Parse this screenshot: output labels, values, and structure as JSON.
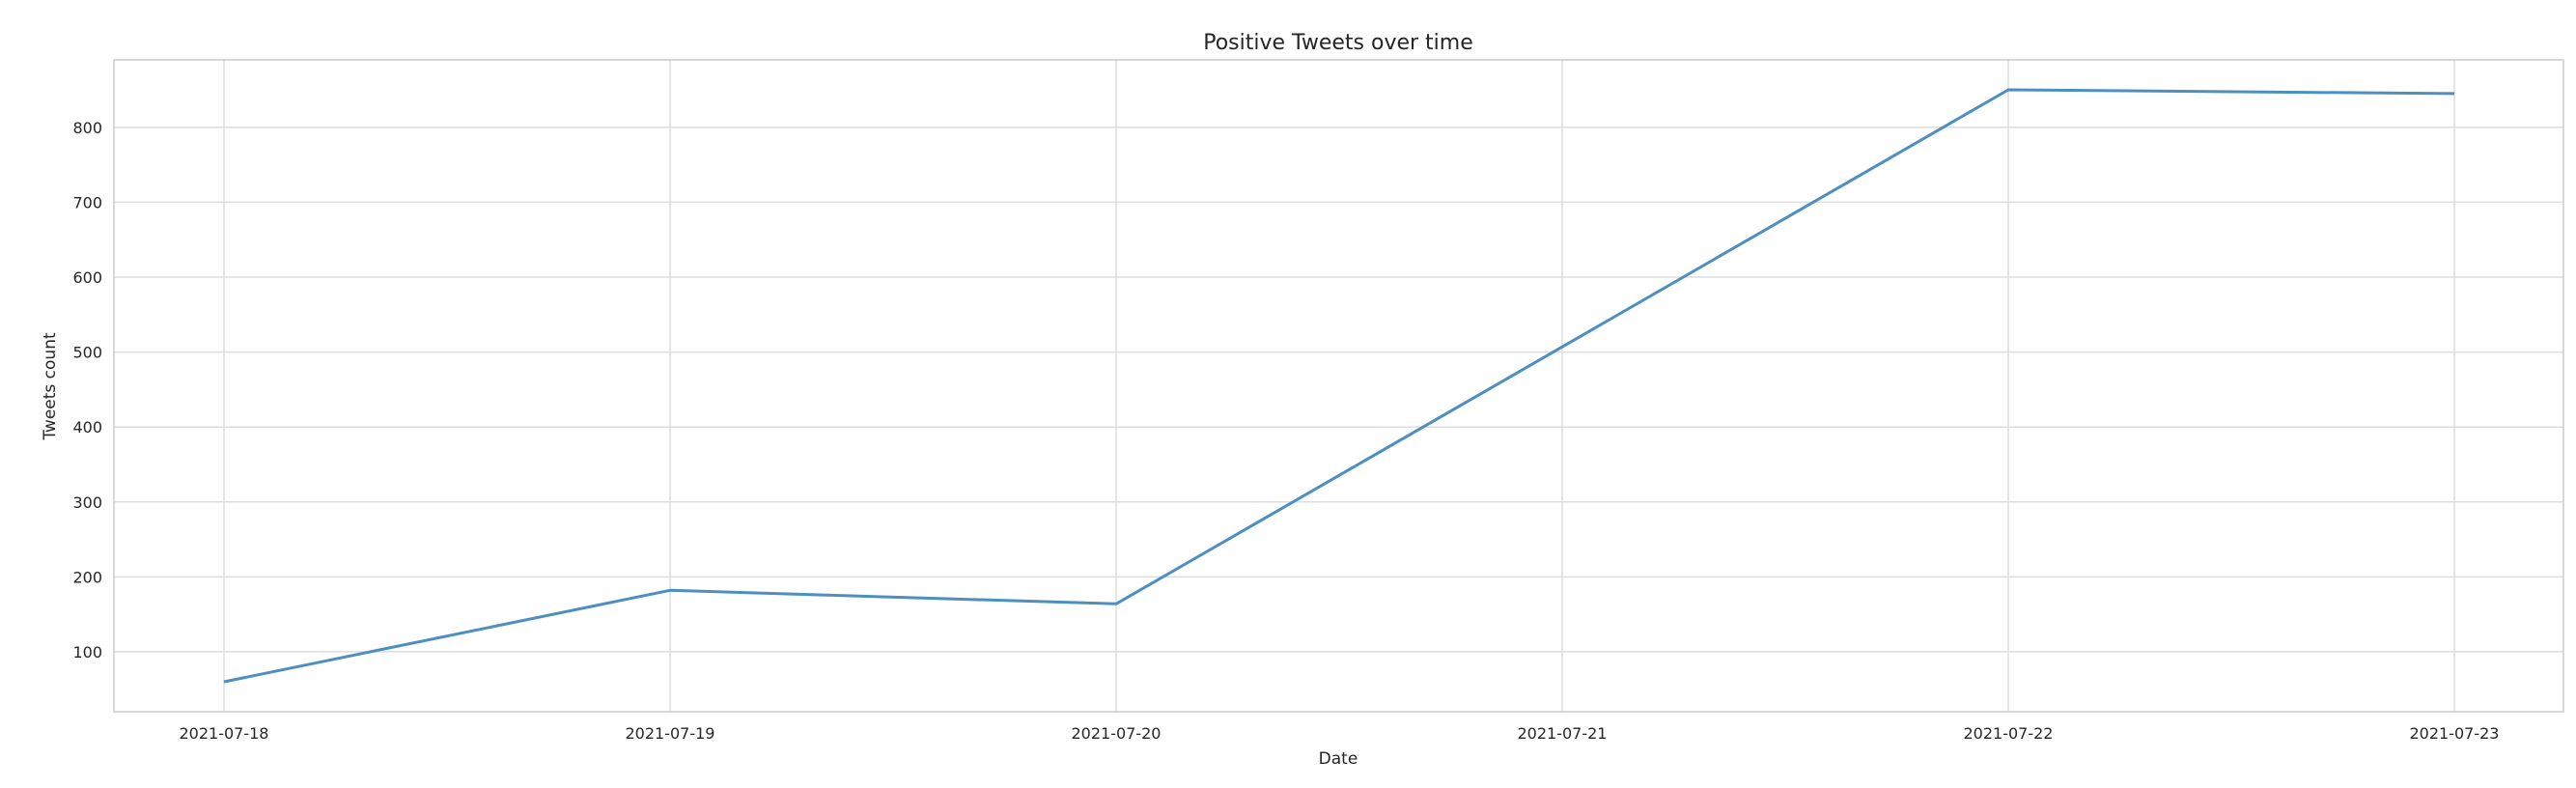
{
  "chart_data": {
    "type": "line",
    "title": "Positive Tweets over time",
    "xlabel": "Date",
    "ylabel": "Tweets count",
    "x": [
      "2021-07-18",
      "2021-07-19",
      "2021-07-20",
      "2021-07-21",
      "2021-07-22",
      "2021-07-23"
    ],
    "x_tick_labels": [
      "2021-07-18",
      "2021-07-19",
      "2021-07-20",
      "2021-07-21",
      "2021-07-22",
      "2021-07-23"
    ],
    "series": [
      {
        "values": [
          60,
          182,
          164,
          507,
          850,
          845
        ]
      }
    ],
    "y_ticks": [
      100,
      200,
      300,
      400,
      500,
      600,
      700,
      800
    ],
    "ylim": [
      20,
      890
    ],
    "grid": true,
    "line_color": "#4c8fc0"
  }
}
